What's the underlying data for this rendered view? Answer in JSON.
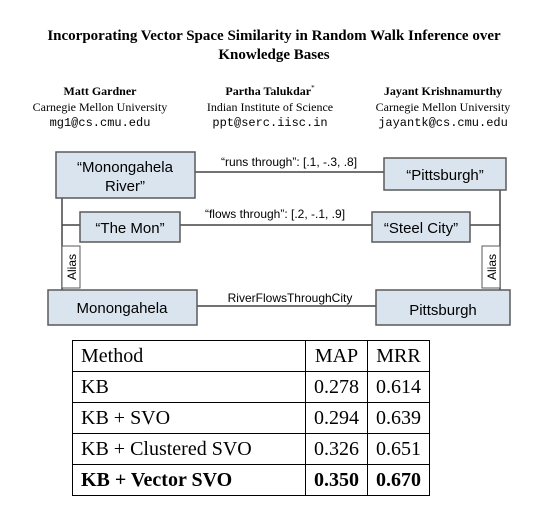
{
  "paper": {
    "title_line1": "Incorporating Vector Space Similarity in Random Walk Inference over",
    "title_line2": "Knowledge Bases",
    "authors": [
      {
        "name": "Matt Gardner",
        "mark": "",
        "institution": "Carnegie Mellon University",
        "email": "mg1@cs.cmu.edu"
      },
      {
        "name": "Partha Talukdar",
        "mark": "*",
        "institution": "Indian Institute of Science",
        "email": "ppt@serc.iisc.in"
      },
      {
        "name": "Jayant Krishnamurthy",
        "mark": "",
        "institution": "Carnegie Mellon University",
        "email": "jayantk@cs.cmu.edu"
      }
    ]
  },
  "figure": {
    "nodes": {
      "monongahela_river_line1": "“Monongahela",
      "monongahela_river_line2": "River”",
      "pittsburgh_quoted": "“Pittsburgh”",
      "the_mon": "“The Mon”",
      "steel_city": "“Steel City”",
      "monongahela": "Monongahela",
      "pittsburgh": "Pittsburgh"
    },
    "edges": {
      "runs_through": "“runs through”: [.1, -.3, .8]",
      "flows_through": "“flows through”: [.2, -.1, .9]",
      "river_flows": "RiverFlowsThroughCity",
      "alias_left": "Alias",
      "alias_right": "Alias"
    },
    "colors": {
      "box_fill": "#d9e4ef",
      "box_stroke": "#5a5a5a",
      "line": "#444444"
    }
  },
  "table": {
    "headers": [
      "Method",
      "MAP",
      "MRR"
    ],
    "rows": [
      {
        "method": "KB",
        "map": "0.278",
        "mrr": "0.614"
      },
      {
        "method": "KB + SVO",
        "map": "0.294",
        "mrr": "0.639"
      },
      {
        "method": "KB + Clustered SVO",
        "map": "0.326",
        "mrr": "0.651"
      },
      {
        "method": "KB + Vector SVO",
        "map": "0.350",
        "mrr": "0.670"
      }
    ]
  }
}
